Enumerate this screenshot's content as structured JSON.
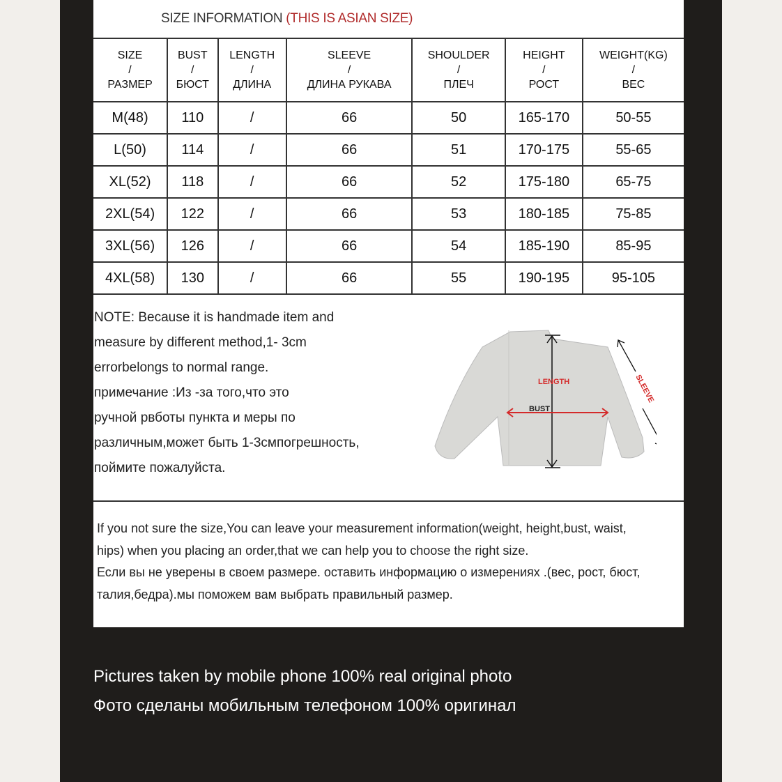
{
  "title": {
    "main": "SIZE INFORMATION",
    "highlight": "(THIS IS ASIAN SIZE)"
  },
  "table": {
    "headers": [
      [
        "SIZE",
        "/",
        "РАЗМЕР"
      ],
      [
        "BUST",
        "/",
        "БЮСТ"
      ],
      [
        "LENGTH",
        "/",
        "ДЛИНА"
      ],
      [
        "SLEEVE",
        "/",
        "ДЛИНА РУКАВА"
      ],
      [
        "SHOULDER",
        "/",
        "ПЛЕЧ"
      ],
      [
        "HEIGHT",
        "/",
        "РОСТ"
      ],
      [
        "WEIGHT(KG)",
        "/",
        "ВЕС"
      ]
    ],
    "rows": [
      [
        "M(48)",
        "110",
        "/",
        "66",
        "50",
        "165-170",
        "50-55"
      ],
      [
        "L(50)",
        "114",
        "/",
        "66",
        "51",
        "170-175",
        "55-65"
      ],
      [
        "XL(52)",
        "118",
        "/",
        "66",
        "52",
        "175-180",
        "65-75"
      ],
      [
        "2XL(54)",
        "122",
        "/",
        "66",
        "53",
        "180-185",
        "75-85"
      ],
      [
        "3XL(56)",
        "126",
        "/",
        "66",
        "54",
        "185-190",
        "85-95"
      ],
      [
        "4XL(58)",
        "130",
        "/",
        "66",
        "55",
        "190-195",
        "95-105"
      ]
    ]
  },
  "note": [
    "NOTE: Because it is handmade item and",
    "measure by different method,1- 3cm",
    "errorbelongs to normal range.",
    "примечание :Из -за того,что это",
    "ручной рвботы пункта и меры по",
    "различным,может быть 1-3смпогрешность,",
    "поймите пожалуйста."
  ],
  "diagram": {
    "length": "LENGTH",
    "bust": "BUST",
    "sleeve": "SLEEVE",
    "accent": "#d42a2a"
  },
  "help": [
    "If you not sure the size,You can leave your measurement information(weight, height,bust, waist,",
    "hips) when you placing an order,that we can help you to choose the right size.",
    "Если вы не уверены в своем размере. оставить информацию о измерениях .(вес, рост, бюст,",
    " талия,бедра).мы поможем вам выбрать правильный размер."
  ],
  "caption": [
    "Pictures taken by mobile phone 100% real original photo",
    "Фото сделаны мобильным телефоном 100% оригинал"
  ]
}
